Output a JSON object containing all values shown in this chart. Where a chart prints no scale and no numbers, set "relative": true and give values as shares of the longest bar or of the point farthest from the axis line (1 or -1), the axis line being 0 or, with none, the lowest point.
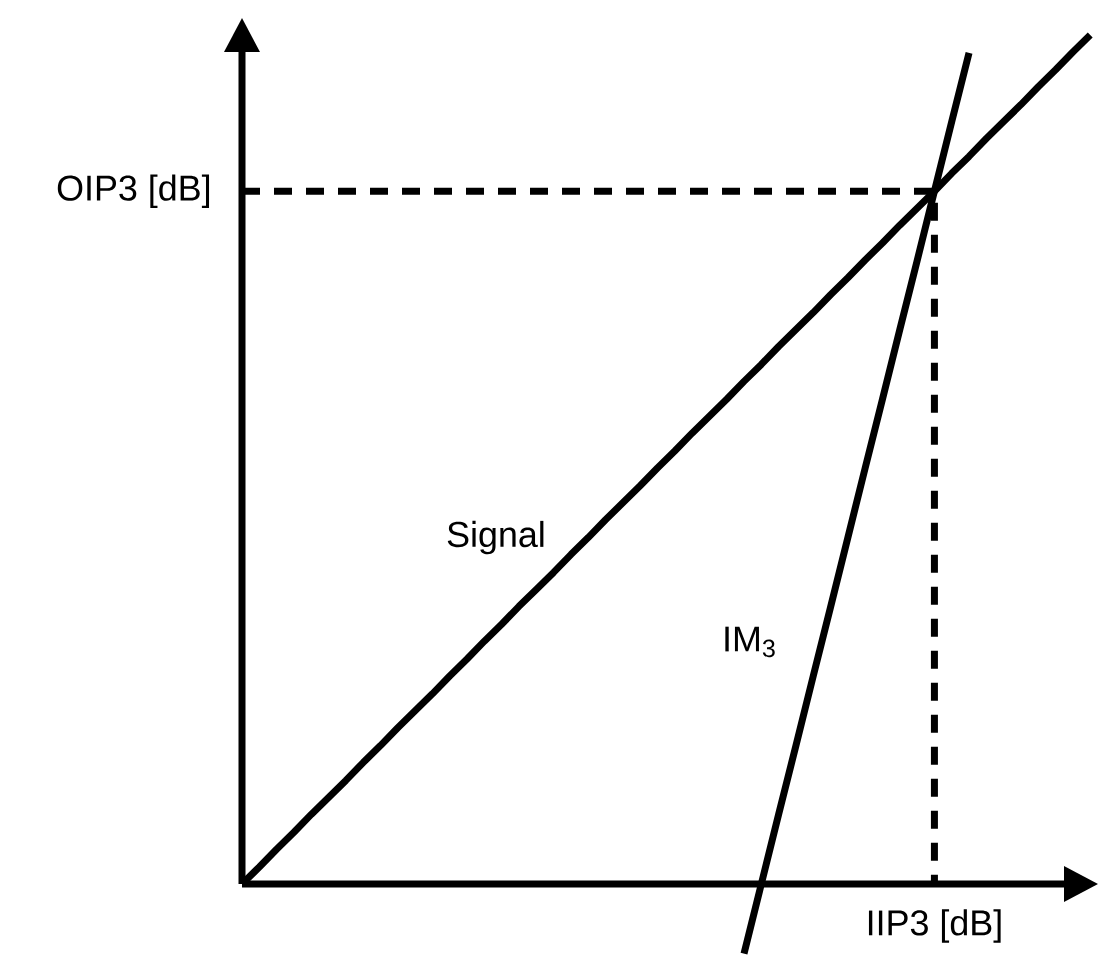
{
  "chart_data": {
    "type": "line",
    "relative": true,
    "marker": "none",
    "line_style": "solid",
    "categories": [
      null,
      null,
      null,
      null,
      null,
      null,
      null,
      null,
      null,
      null,
      null,
      null,
      null,
      null,
      null,
      null,
      null,
      null,
      null,
      null,
      null,
      null,
      null,
      null,
      null,
      null,
      null,
      null,
      null,
      null,
      null,
      null,
      null,
      null,
      null,
      null,
      null,
      null,
      null,
      null,
      null,
      null,
      null,
      null,
      null,
      null,
      null,
      null,
      null,
      null
    ],
    "series": [
      {
        "name": "Signal",
        "color": "#000000",
        "values": [
          0,
          0.02,
          0.041,
          0.061,
          0.082,
          0.102,
          0.122,
          0.143,
          0.163,
          0.184,
          0.204,
          0.224,
          0.245,
          0.265,
          0.286,
          0.306,
          0.327,
          0.347,
          0.367,
          0.388,
          0.408,
          0.429,
          0.449,
          0.469,
          0.49,
          0.51,
          0.531,
          0.551,
          0.571,
          0.592,
          0.612,
          0.633,
          0.653,
          0.673,
          0.694,
          0.714,
          0.735,
          0.755,
          0.776,
          0.796,
          0.816,
          0.837,
          0.857,
          0.878,
          0.898,
          0.918,
          0.939,
          0.959,
          0.98,
          1
        ]
      },
      {
        "name": "IM$_{3}$",
        "color": "#000000",
        "values": [
          null,
          null,
          null,
          null,
          null,
          null,
          null,
          null,
          null,
          null,
          null,
          null,
          null,
          null,
          null,
          null,
          null,
          null,
          null,
          null,
          null,
          null,
          null,
          null,
          null,
          null,
          null,
          null,
          null,
          -0.082,
          0,
          0.082,
          0.163,
          0.245,
          0.326,
          0.408,
          0.49,
          0.571,
          0.653,
          0.734,
          0.816,
          0.898,
          0.979,
          null,
          null,
          null,
          null,
          null,
          null,
          null
        ]
      }
    ],
    "ref_lines": [
      {
        "axis": "y",
        "value": 0.816,
        "label": "OIP3 [dB]",
        "color": "#000000",
        "line_style": "dashed"
      }
    ],
    "annotations": [
      "IIP3 [dB]"
    ]
  }
}
